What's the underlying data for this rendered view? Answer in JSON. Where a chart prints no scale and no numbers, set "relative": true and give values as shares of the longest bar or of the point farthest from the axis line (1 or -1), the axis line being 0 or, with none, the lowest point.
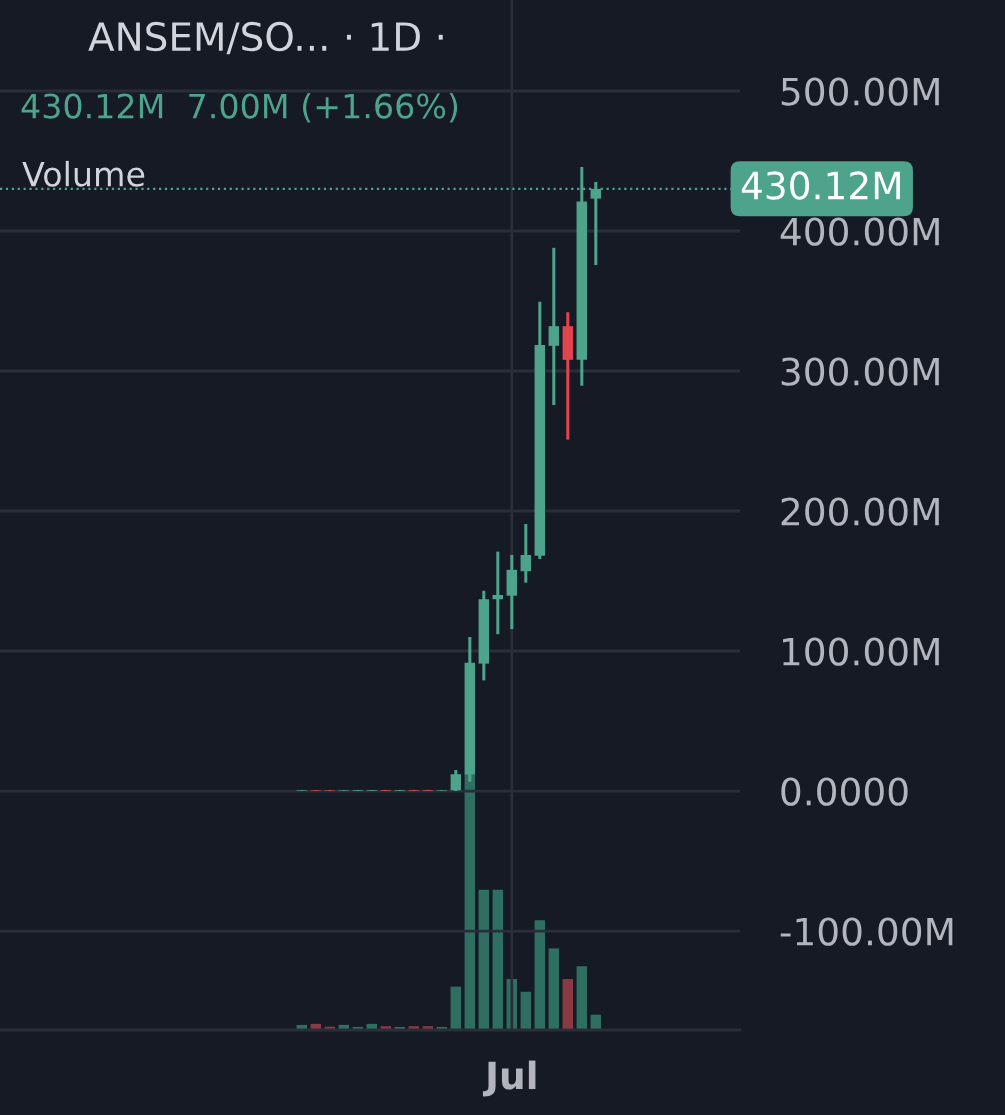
{
  "chart_data": [
    {
      "type": "candlestick",
      "title": "ANSEM/SO... · 1D ·",
      "subtitle": "430.12M  7.00M (+1.66%)",
      "categories": [
        null,
        null,
        null,
        null,
        null,
        null,
        null,
        null,
        null,
        null,
        null,
        null,
        null,
        null,
        null,
        "Jul",
        null,
        null,
        null,
        null,
        null,
        null
      ],
      "ohlc": [
        [
          0.2,
          0.6,
          0.1,
          0.6
        ],
        [
          0.6,
          0.7,
          0.1,
          0.2
        ],
        [
          0.6,
          0.7,
          0.1,
          0.2
        ],
        [
          0.2,
          0.6,
          0.1,
          0.6
        ],
        [
          0.2,
          0.7,
          0.1,
          0.7
        ],
        [
          0.2,
          0.7,
          0.1,
          0.7
        ],
        [
          0.7,
          0.8,
          0.1,
          0.2
        ],
        [
          0.2,
          0.7,
          0.1,
          0.7
        ],
        [
          0.7,
          0.8,
          0.1,
          0.2
        ],
        [
          0.7,
          0.8,
          0.1,
          0.2
        ],
        [
          0.2,
          0.6,
          0.1,
          0.6
        ],
        [
          0.5,
          15,
          0,
          12
        ],
        [
          11.6,
          110,
          6.6,
          91.6
        ],
        [
          91,
          143,
          79,
          137
        ],
        [
          137,
          171,
          112,
          140
        ],
        [
          139.5,
          168.6,
          115.7,
          158
        ],
        [
          157,
          190.7,
          148.8,
          168.6
        ],
        [
          168,
          349.5,
          165.7,
          318.6
        ],
        [
          318,
          388,
          275.7,
          332
        ],
        [
          332,
          342,
          251,
          308
        ],
        [
          308,
          445.7,
          289.5,
          421
        ],
        [
          423.12,
          435,
          375.7,
          430.12
        ]
      ],
      "colors": [
        "#4ea38c",
        "#e0454f",
        "#e0454f",
        "#4ea38c",
        "#4ea38c",
        "#4ea38c",
        "#e0454f",
        "#4ea38c",
        "#e0454f",
        "#e0454f",
        "#4ea38c",
        "#4ea38c",
        "#4ea38c",
        "#4ea38c",
        "#4ea38c",
        "#4ea38c",
        "#4ea38c",
        "#4ea38c",
        "#4ea38c",
        "#e0454f",
        "#4ea38c",
        "#4ea38c"
      ],
      "ylim": [
        -170.7,
        565
      ],
      "yticks": [
        {
          "value": 500,
          "label": "500.00M"
        },
        {
          "value": 400,
          "label": "400.00M"
        },
        {
          "value": 300,
          "label": "300.00M"
        },
        {
          "value": 200,
          "label": "200.00M"
        },
        {
          "value": 100,
          "label": "100.00M"
        },
        {
          "value": 0,
          "label": "0.0000"
        },
        {
          "value": -100,
          "label": "-100.00M"
        }
      ],
      "ref_lines": [
        {
          "axis": "y",
          "value": 430.12,
          "label": "430.12M",
          "color": "#4ea38c",
          "line_style": "dotted"
        }
      ],
      "grid": true
    },
    {
      "type": "bar",
      "title": "Volume",
      "relative": true,
      "categories": [
        null,
        null,
        null,
        null,
        null,
        null,
        null,
        null,
        null,
        null,
        null,
        null,
        null,
        null,
        null,
        null,
        null,
        null,
        null,
        null,
        null,
        null
      ],
      "values": [
        0.02,
        0.024,
        0.013,
        0.02,
        0.012,
        0.024,
        0.015,
        0.012,
        0.015,
        0.015,
        0.012,
        0.17,
        1,
        0.55,
        0.55,
        0.2,
        0.15,
        0.43,
        0.32,
        0.2,
        0.25,
        0.06
      ],
      "colors": [
        "#2f6f62",
        "#8a3a42",
        "#8a3a42",
        "#2f6f62",
        "#2f6f62",
        "#2f6f62",
        "#8a3a42",
        "#2f6f62",
        "#8a3a42",
        "#8a3a42",
        "#2f6f62",
        "#2f6f62",
        "#2f6f62",
        "#2f6f62",
        "#2f6f62",
        "#2f6f62",
        "#2f6f62",
        "#2f6f62",
        "#2f6f62",
        "#8a3a42",
        "#2f6f62",
        "#2f6f62"
      ]
    }
  ]
}
